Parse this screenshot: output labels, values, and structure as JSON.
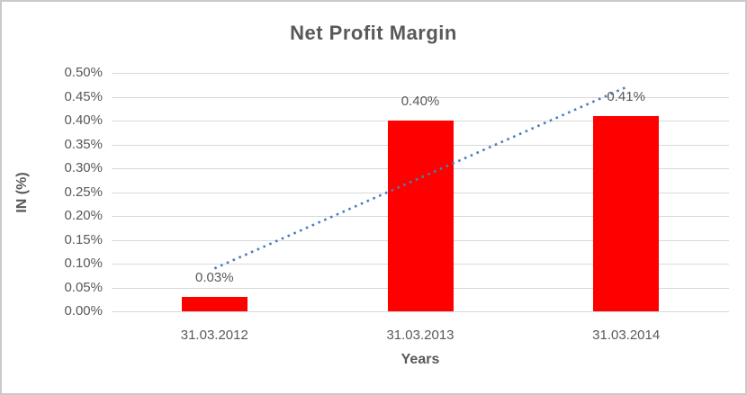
{
  "chart_data": {
    "type": "bar",
    "title": "Net Profit Margin",
    "categories": [
      "31.03.2012",
      "31.03.2013",
      "31.03.2014"
    ],
    "values": [
      0.03,
      0.4,
      0.41
    ],
    "data_labels": [
      "0.03%",
      "0.40%",
      "0.41%"
    ],
    "xlabel": "Years",
    "ylabel": "IN (%)",
    "ylim": [
      0,
      0.5
    ],
    "ytick_step": 0.05,
    "ytick_labels": [
      "0.00%",
      "0.05%",
      "0.10%",
      "0.15%",
      "0.20%",
      "0.25%",
      "0.30%",
      "0.35%",
      "0.40%",
      "0.45%",
      "0.50%"
    ],
    "grid": true,
    "legend": "none",
    "bar_color": "#FF0000",
    "trendline": {
      "type": "linear",
      "style": "dotted",
      "color": "#4A7EBB",
      "start_value": 0.09,
      "end_value": 0.47
    },
    "colors": {
      "text": "#595959",
      "gridline": "#D9D9D9",
      "axis_line": "#D9D9D9",
      "border": "#C9C9C9",
      "background": "#FFFFFF"
    }
  }
}
